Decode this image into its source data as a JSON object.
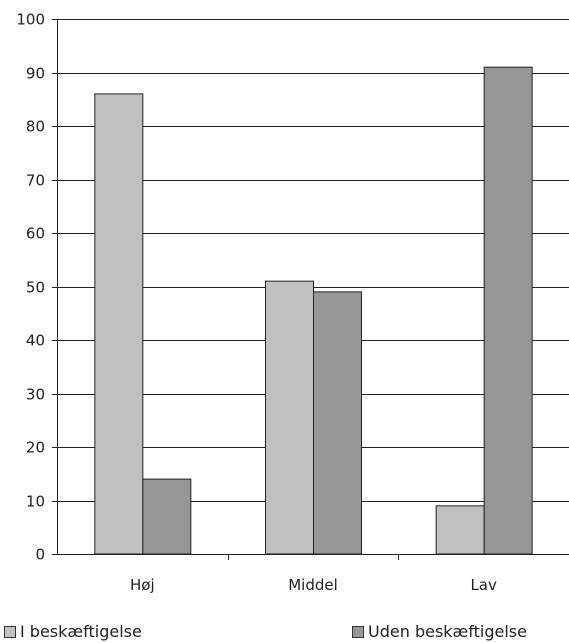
{
  "chart_data": {
    "type": "bar",
    "categories": [
      "Høj",
      "Middel",
      "Lav"
    ],
    "series": [
      {
        "name": "I beskæftigelse",
        "values": [
          86,
          51,
          9
        ],
        "color": "#c0c0c0"
      },
      {
        "name": "Uden beskæftigelse",
        "values": [
          14,
          49,
          91
        ],
        "color": "#969696"
      }
    ],
    "yticks": [
      0,
      10,
      20,
      30,
      40,
      50,
      60,
      70,
      80,
      90,
      100
    ],
    "ylim": [
      0,
      100
    ],
    "grid": true,
    "legend": "bottom"
  }
}
